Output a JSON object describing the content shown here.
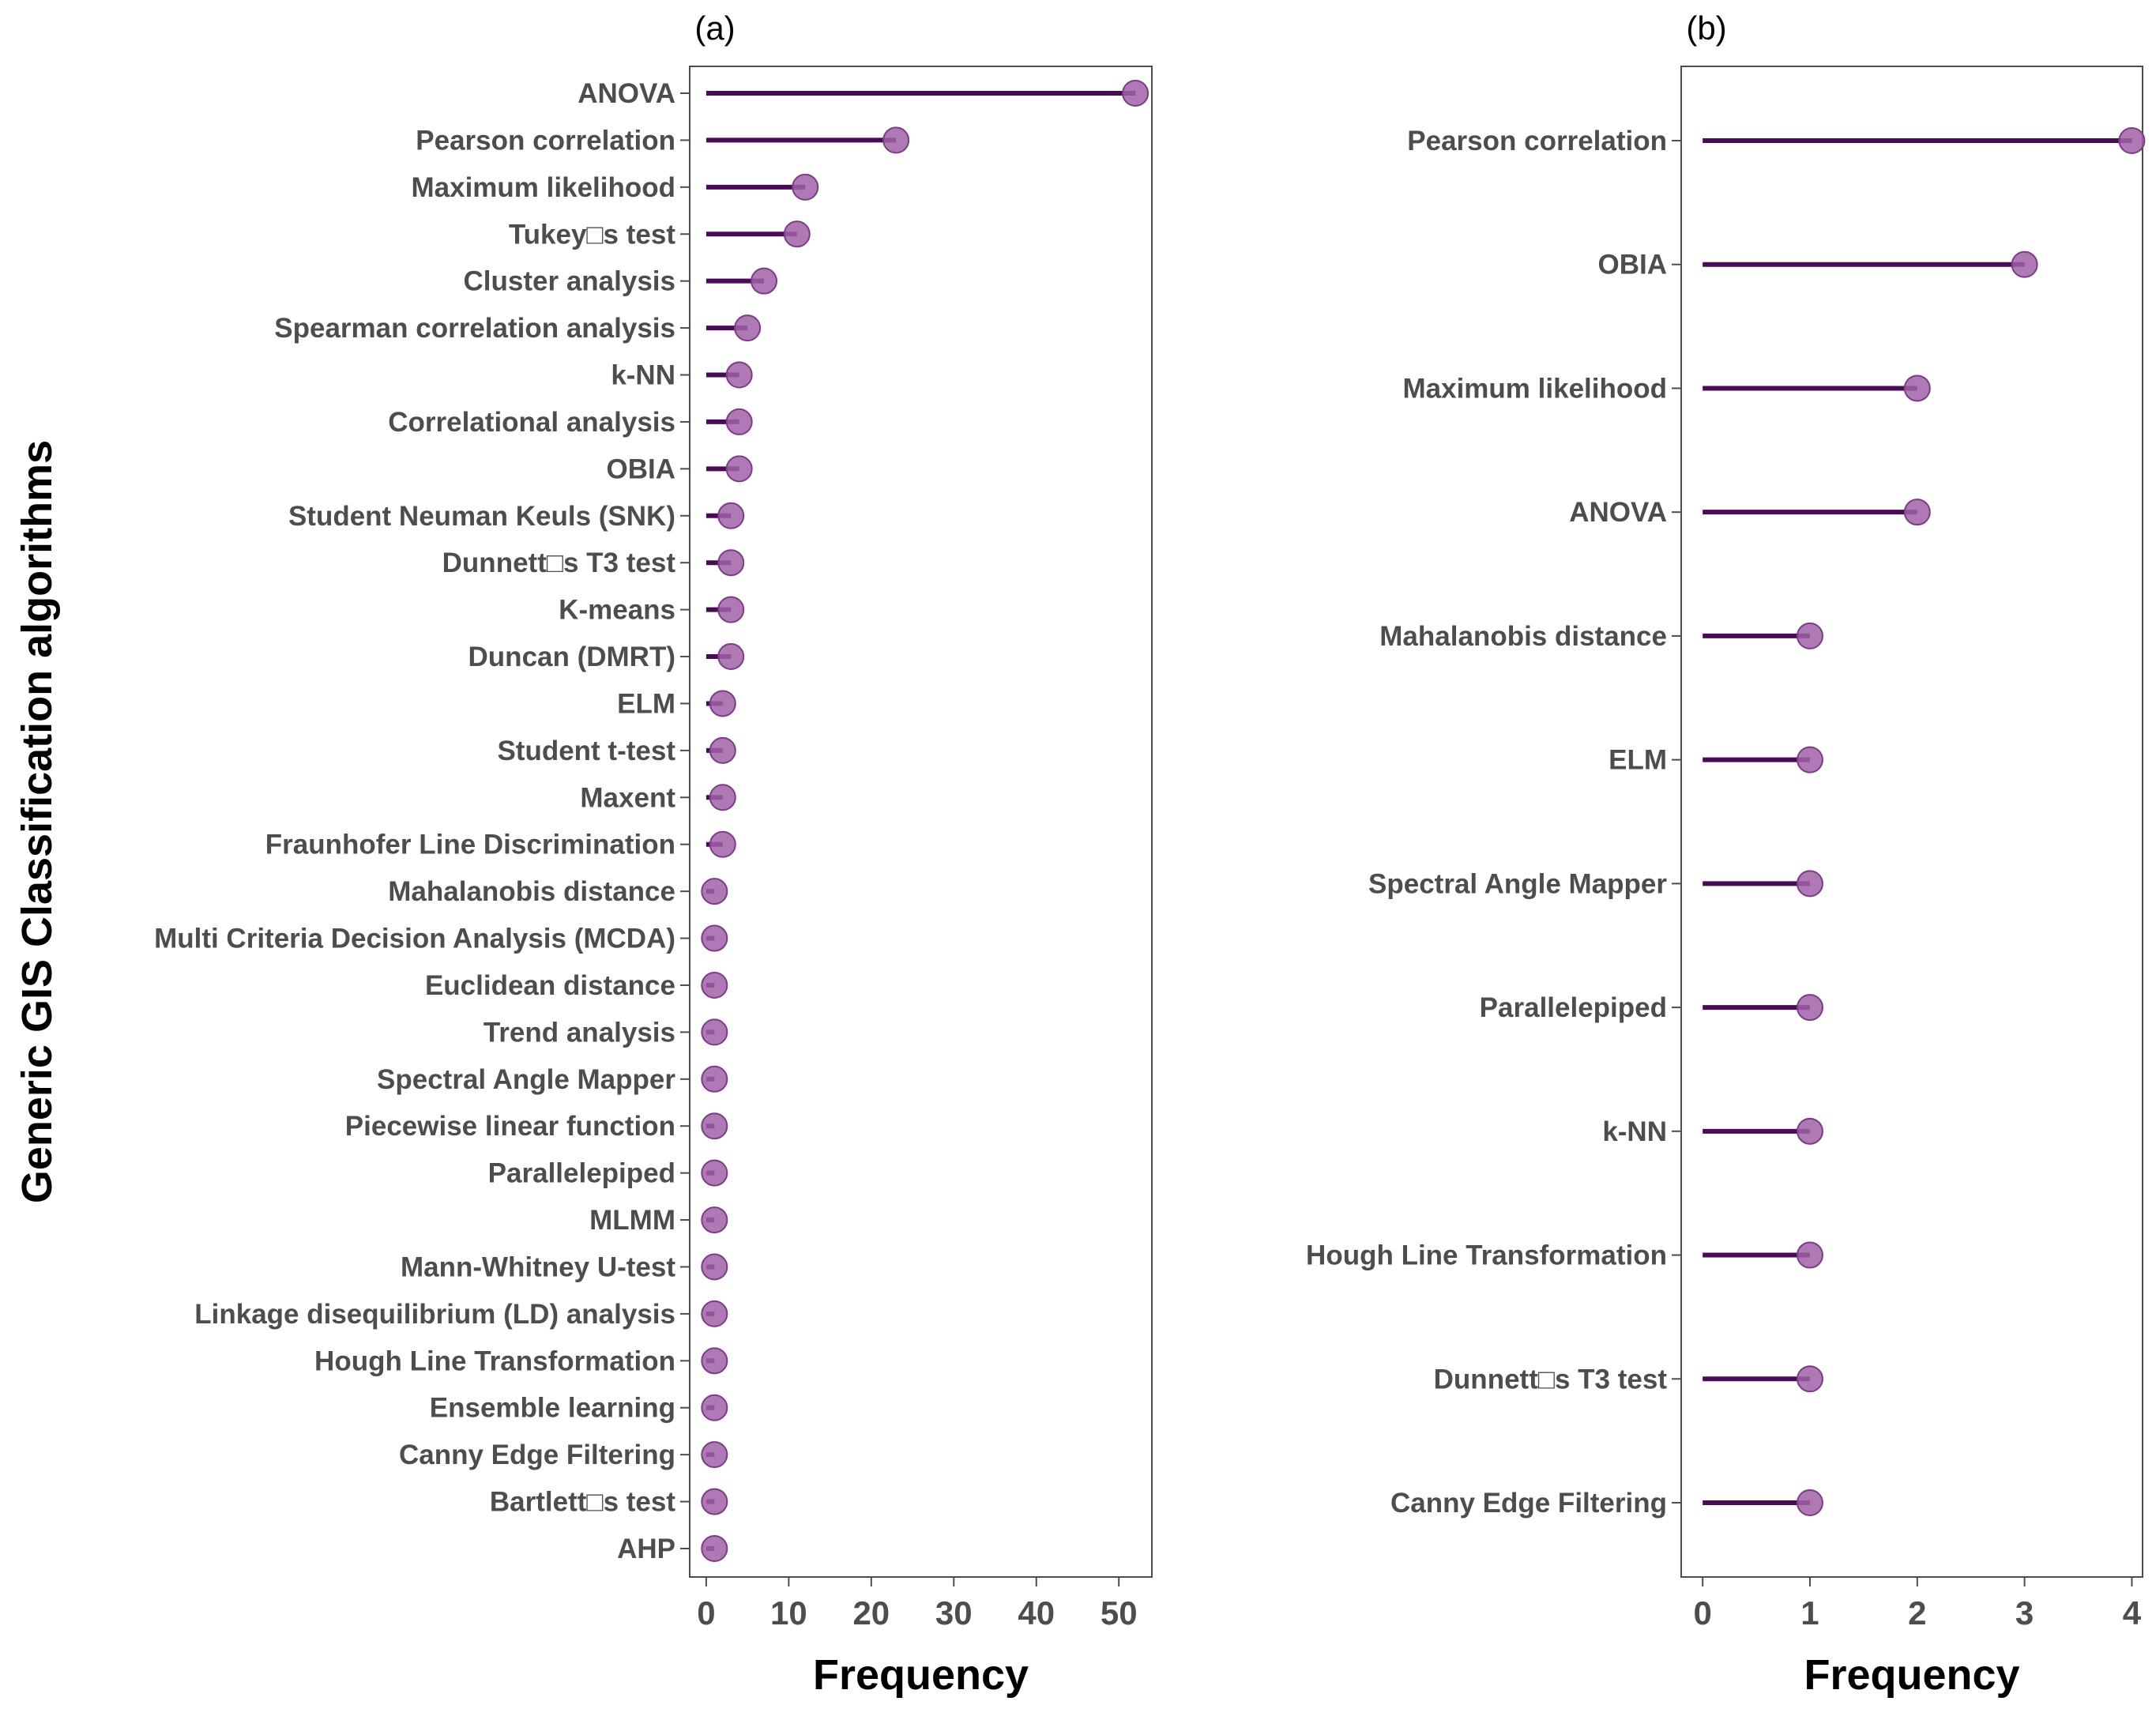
{
  "styles": {
    "stem_color": "#4a0b55",
    "point_fill": "#a062a8",
    "point_stroke": "#7c3d86",
    "axis_color": "#4d4d4d",
    "panel_border": "#4d4d4d"
  },
  "y_axis_title": "Generic GIS Classification algorithms",
  "chart_data": [
    {
      "type": "lollipop",
      "panel_tag": "(a)",
      "xlabel": "Frequency",
      "xlim": [
        -2,
        54
      ],
      "xticks": [
        0,
        10,
        20,
        30,
        40,
        50
      ],
      "categories": [
        "ANOVA",
        "Pearson correlation",
        "Maximum likelihood",
        "Tukey□s test",
        "Cluster analysis",
        "Spearman correlation analysis",
        "k-NN",
        "Correlational analysis",
        "OBIA",
        "Student Neuman Keuls (SNK)",
        "Dunnett□s T3 test",
        "K-means",
        "Duncan (DMRT)",
        "ELM",
        "Student t-test",
        "Maxent",
        "Fraunhofer Line Discrimination",
        "Mahalanobis distance",
        "Multi Criteria Decision Analysis (MCDA)",
        "Euclidean distance",
        "Trend analysis",
        "Spectral Angle Mapper",
        "Piecewise linear function",
        "Parallelepiped",
        "MLMM",
        "Mann-Whitney U-test",
        "Linkage disequilibrium (LD) analysis",
        "Hough Line Transformation",
        "Ensemble learning",
        "Canny Edge Filtering",
        "Bartlett□s test",
        "AHP"
      ],
      "values": [
        52,
        23,
        12,
        11,
        7,
        5,
        4,
        4,
        4,
        3,
        3,
        3,
        3,
        2,
        2,
        2,
        2,
        1,
        1,
        1,
        1,
        1,
        1,
        1,
        1,
        1,
        1,
        1,
        1,
        1,
        1,
        1
      ]
    },
    {
      "type": "lollipop",
      "panel_tag": "(b)",
      "xlabel": "Frequency",
      "xlim": [
        -0.2,
        4.1
      ],
      "xticks": [
        0,
        1,
        2,
        3,
        4
      ],
      "categories": [
        "Pearson correlation",
        "OBIA",
        "Maximum likelihood",
        "ANOVA",
        "Mahalanobis distance",
        "ELM",
        "Spectral Angle Mapper",
        "Parallelepiped",
        "k-NN",
        "Hough Line Transformation",
        "Dunnett□s T3 test",
        "Canny Edge Filtering"
      ],
      "values": [
        4,
        3,
        2,
        2,
        1,
        1,
        1,
        1,
        1,
        1,
        1,
        1
      ]
    }
  ]
}
